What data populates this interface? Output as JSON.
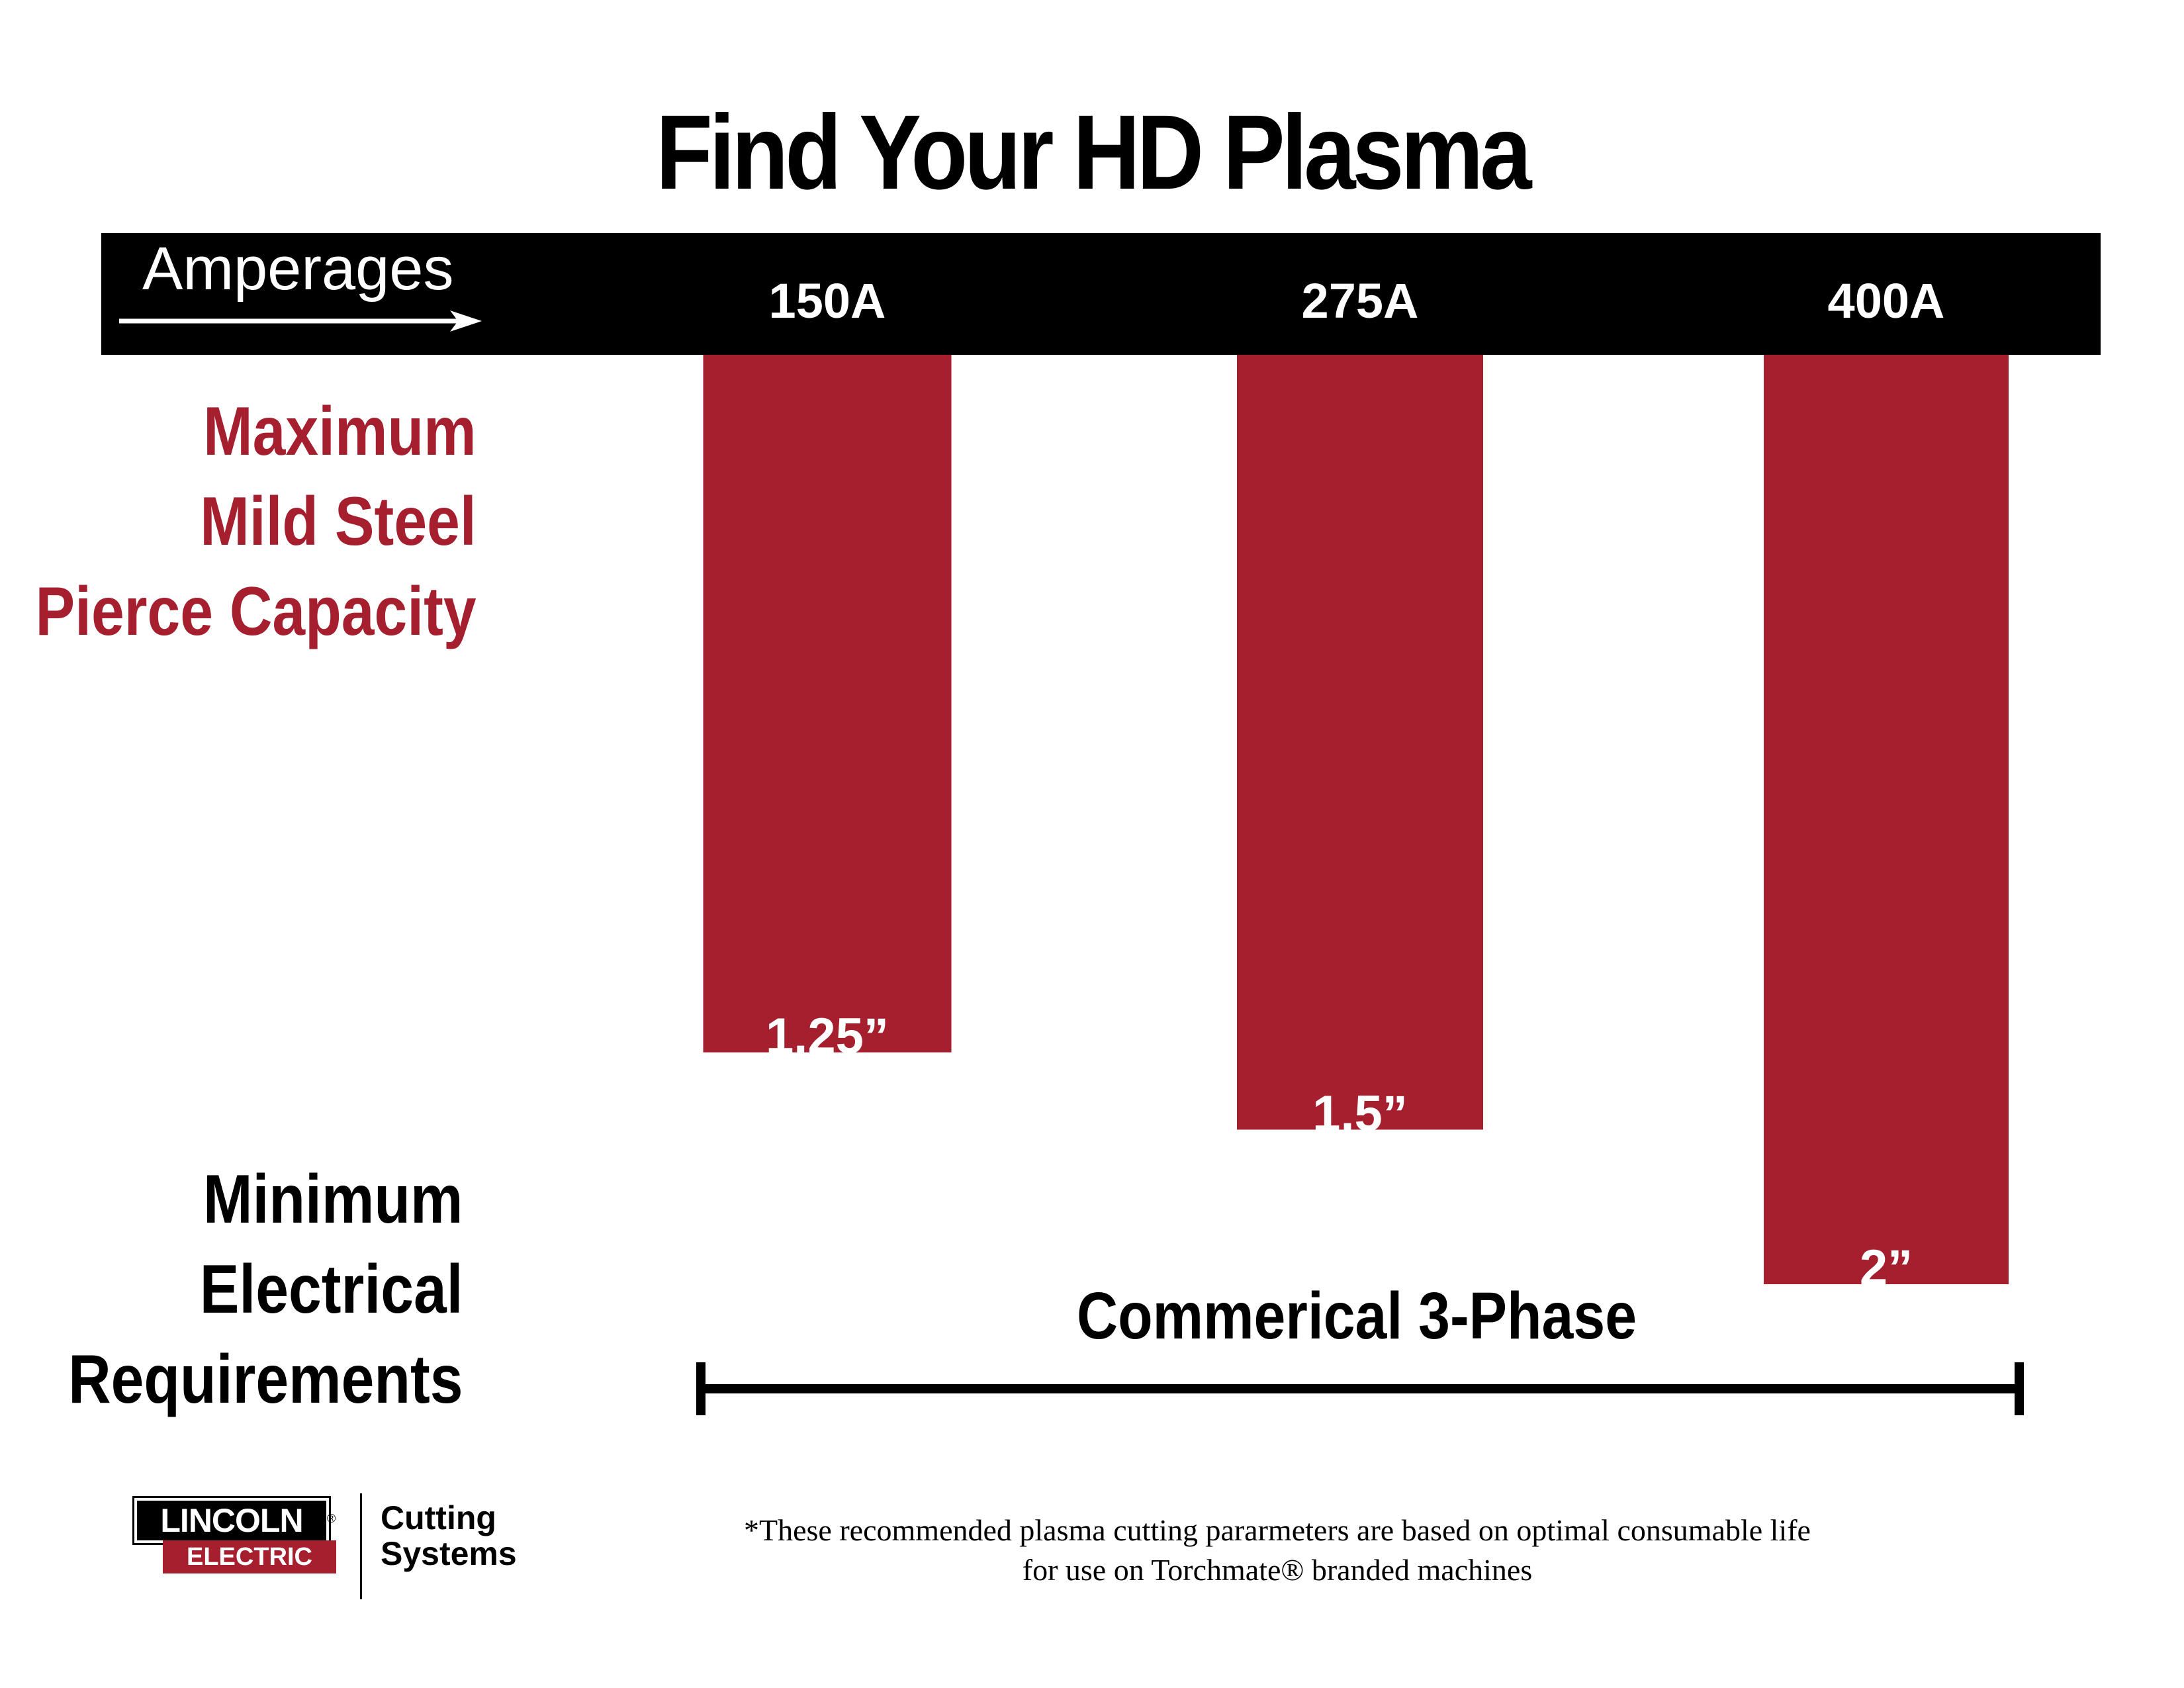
{
  "title": "Find Your HD Plasma",
  "header": {
    "amperages_label": "Amperages"
  },
  "left_labels": {
    "pierce": [
      "Maximum",
      "Mild Steel",
      "Pierce Capacity"
    ],
    "electrical": [
      "Minimum",
      "Electrical",
      "Requirements"
    ]
  },
  "colors": {
    "bar": "#a51f2f",
    "header": "#000000",
    "accent_text": "#a51f2f"
  },
  "chart_data": {
    "type": "bar",
    "orientation": "downward",
    "categories": [
      "150A",
      "275A",
      "400A"
    ],
    "values": [
      1.25,
      1.5,
      2
    ],
    "value_labels": [
      "1.25”",
      "1.5”",
      "2”"
    ],
    "unit": "inches",
    "ylim": [
      0,
      2
    ]
  },
  "electrical_range": {
    "label": "Commerical 3-Phase"
  },
  "logo": {
    "brand_top": "LINCOLN",
    "registered": "®",
    "brand_bottom": "ELECTRIC",
    "division_line1": "Cutting",
    "division_line2": "Systems"
  },
  "footnote": {
    "line1": "*These recommended plasma cutting pararmeters are based on optimal consumable life",
    "line2": "for use on Torchmate® branded machines"
  }
}
